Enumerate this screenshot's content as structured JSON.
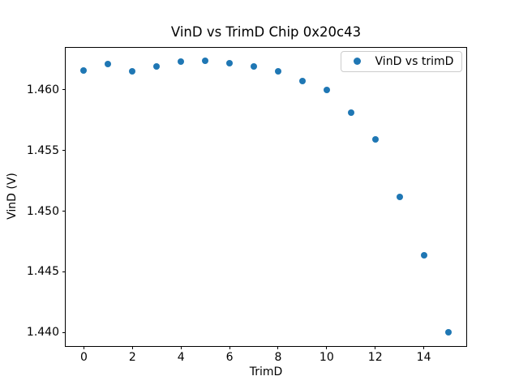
{
  "chart_data": {
    "type": "scatter",
    "title": "VinD vs TrimD Chip 0x20c43",
    "xlabel": "TrimD",
    "ylabel": "VinD (V)",
    "legend": {
      "label": "VinD vs trimD",
      "position": "upper right"
    },
    "marker_color": "#1f77b4",
    "grid": false,
    "x": [
      0,
      1,
      2,
      3,
      4,
      5,
      6,
      7,
      8,
      9,
      10,
      11,
      12,
      13,
      14,
      15
    ],
    "y": [
      1.4616,
      1.4621,
      1.4615,
      1.4619,
      1.4623,
      1.4624,
      1.4622,
      1.4619,
      1.4615,
      1.4607,
      1.46,
      1.4581,
      1.4559,
      1.4512,
      1.4464,
      1.44
    ],
    "xlim": [
      -0.75,
      15.75
    ],
    "ylim": [
      1.43885,
      1.46349
    ],
    "xticks": {
      "values": [
        0,
        2,
        4,
        6,
        8,
        10,
        12,
        14
      ],
      "labels": [
        "0",
        "2",
        "4",
        "6",
        "8",
        "10",
        "12",
        "14"
      ]
    },
    "yticks": {
      "values": [
        1.44,
        1.445,
        1.45,
        1.455,
        1.46
      ],
      "labels": [
        "1.440",
        "1.445",
        "1.450",
        "1.455",
        "1.460"
      ]
    }
  }
}
